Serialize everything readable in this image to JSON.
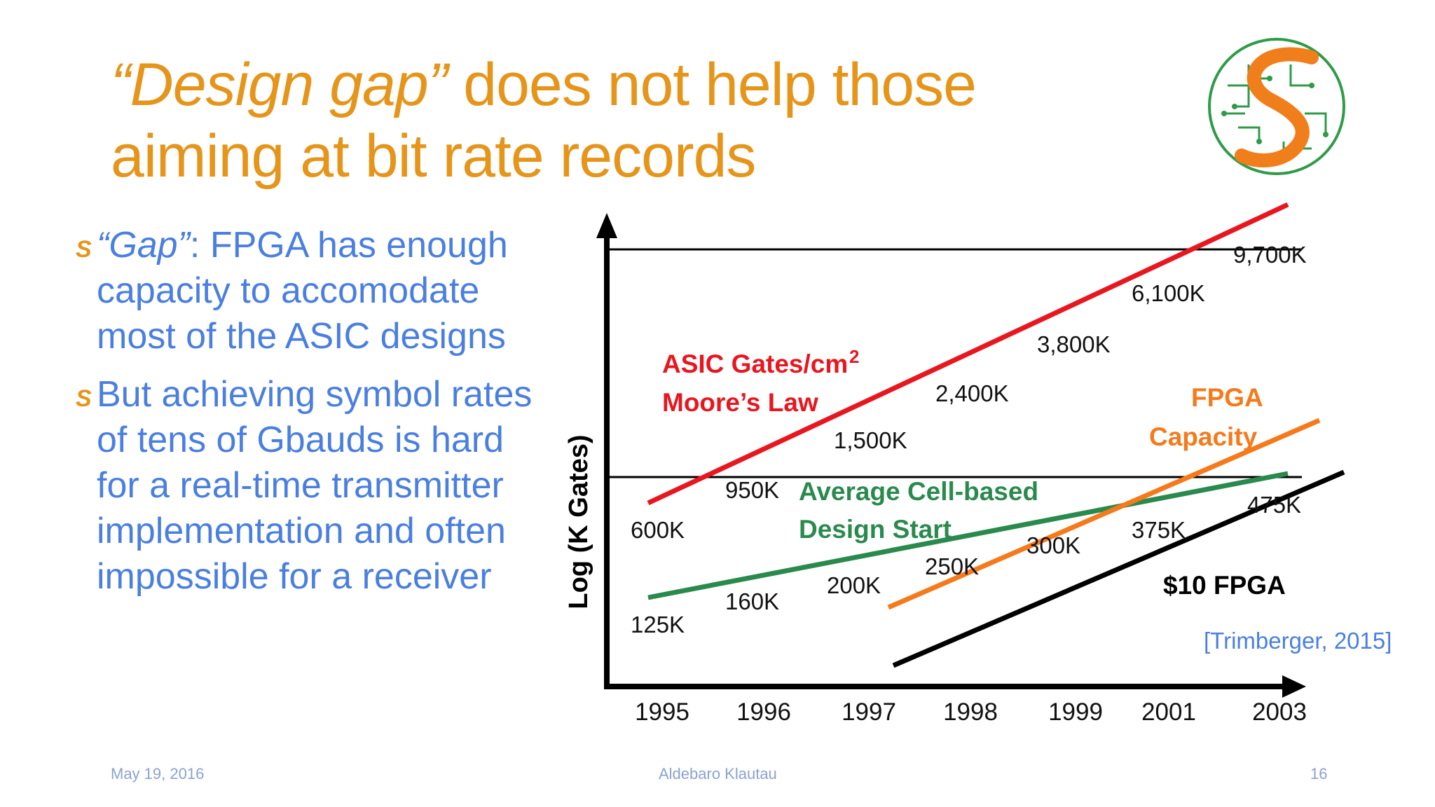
{
  "slide": {
    "title_italic": "“Design gap”",
    "title_rest": " does not help those aiming at bit rate records",
    "bullets": [
      {
        "lead": "“Gap”",
        "text": ": FPGA has enough capacity to accomodate most of the ASIC designs"
      },
      {
        "lead": "",
        "text": "But achieving symbol rates of tens of Gbauds is hard for a real-time transmitter implementation and often impossible for a receiver"
      }
    ],
    "bullet_mark": "S",
    "citation": "[Trimberger, 2015]",
    "footer": {
      "date": "May 19, 2016",
      "author": "Aldebaro Klautau",
      "page": "16"
    },
    "colors": {
      "title": "#e6951b",
      "body": "#4a7fe0",
      "asic": "#e8171f",
      "fpga": "#f57a1c",
      "cell": "#2a8a4e",
      "fpga10": "#000000"
    }
  },
  "chart_data": {
    "type": "line",
    "ylabel": "Log (K Gates)",
    "xlabel": "",
    "categories": [
      "1995",
      "1996",
      "1997",
      "1998",
      "1999",
      "2001",
      "2003"
    ],
    "y_scale": "log",
    "series": [
      {
        "name": "ASIC Gates/cm² Moore’s Law",
        "color": "#e8171f",
        "labels": [
          "600K",
          "950K",
          "1,500K",
          "2,400K",
          "3,800K",
          "6,100K",
          "9,700K"
        ]
      },
      {
        "name": "Average Cell-based Design Start",
        "color": "#2a8a4e",
        "labels": [
          "125K",
          "160K",
          "200K",
          "250K",
          "300K",
          "375K",
          "475K"
        ]
      },
      {
        "name": "FPGA Capacity",
        "color": "#f57a1c",
        "labels": []
      },
      {
        "name": "$10 FPGA",
        "color": "#000000",
        "labels": []
      }
    ],
    "annotations": {
      "asic_line1": "ASIC Gates/cm",
      "asic_sup": "2",
      "asic_line2": "Moore’s Law",
      "fpga_line1": "FPGA",
      "fpga_line2": "Capacity",
      "cell_line1": "Average Cell-based",
      "cell_line2": "Design Start",
      "fpga10": "$10 FPGA"
    }
  }
}
